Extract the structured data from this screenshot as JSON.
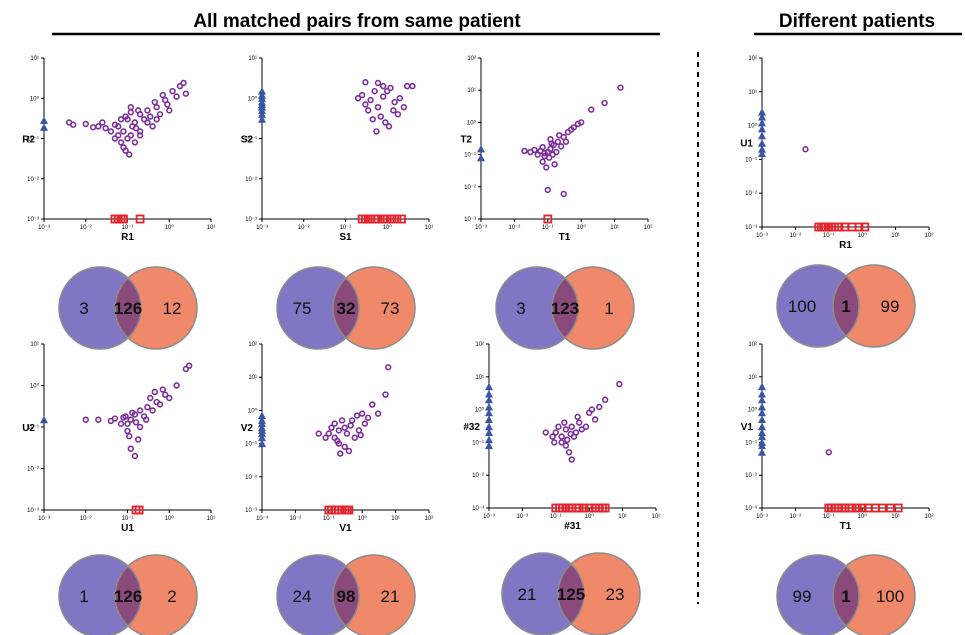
{
  "headers": {
    "left": "All matched pairs from same patient",
    "right": "Different patients"
  },
  "colors": {
    "point": "#7b2d9c",
    "y_only": "#3a55a4",
    "x_only": "#e8222b",
    "venn_left": "#8076c3",
    "venn_right": "#f0896a",
    "venn_overlap": "#8a4a7c",
    "venn_stroke": "#8c8c8c"
  },
  "chart_data": [
    {
      "type": "scatter",
      "x_axis": "log",
      "y_axis": "log",
      "xlabel": "R1",
      "ylabel": "R2",
      "xlim": [
        0.001,
        10
      ],
      "ylim": [
        0.001,
        10
      ],
      "x_ticks": [
        "10⁻³",
        "10⁻²",
        "10⁻¹",
        "10⁰",
        "10¹"
      ],
      "y_ticks": [
        "10⁻³",
        "10⁻²",
        "10⁻¹",
        "10⁰",
        "10¹"
      ],
      "y_only_values": [
        0.19,
        0.28
      ],
      "x_only_values": [
        0.05,
        0.06,
        0.07,
        0.08,
        0.2
      ],
      "points": [
        [
          0.06,
          0.2
        ],
        [
          0.1,
          0.3
        ],
        [
          0.15,
          0.25
        ],
        [
          0.08,
          0.15
        ],
        [
          0.12,
          0.12
        ],
        [
          0.2,
          0.4
        ],
        [
          0.3,
          0.5
        ],
        [
          0.5,
          0.6
        ],
        [
          0.8,
          0.9
        ],
        [
          1.2,
          1.5
        ],
        [
          1.8,
          2.0
        ],
        [
          2.2,
          2.4
        ],
        [
          0.4,
          0.2
        ],
        [
          0.07,
          0.08
        ],
        [
          0.09,
          0.05
        ],
        [
          0.05,
          0.22
        ],
        [
          0.03,
          0.18
        ],
        [
          0.02,
          0.2
        ],
        [
          0.01,
          0.23
        ],
        [
          0.005,
          0.22
        ],
        [
          0.004,
          0.25
        ],
        [
          0.015,
          0.19
        ],
        [
          0.1,
          0.1
        ],
        [
          0.15,
          0.08
        ],
        [
          0.2,
          0.15
        ],
        [
          0.25,
          0.3
        ],
        [
          0.35,
          0.35
        ],
        [
          0.6,
          0.4
        ],
        [
          0.9,
          0.7
        ],
        [
          1.5,
          1.1
        ],
        [
          0.7,
          1.2
        ],
        [
          0.45,
          0.8
        ],
        [
          0.18,
          0.5
        ],
        [
          0.12,
          0.6
        ],
        [
          0.09,
          0.35
        ],
        [
          0.06,
          0.12
        ],
        [
          0.08,
          0.06
        ],
        [
          0.11,
          0.04
        ],
        [
          0.13,
          0.2
        ],
        [
          0.3,
          0.25
        ],
        [
          1.0,
          0.5
        ],
        [
          2.5,
          1.3
        ],
        [
          0.07,
          0.3
        ],
        [
          0.04,
          0.15
        ],
        [
          0.05,
          0.1
        ],
        [
          0.025,
          0.25
        ],
        [
          0.2,
          0.12
        ],
        [
          0.5,
          0.3
        ],
        [
          0.16,
          0.18
        ],
        [
          0.12,
          0.45
        ]
      ],
      "venn": {
        "left": "3",
        "overlap": "126",
        "right": "12"
      }
    },
    {
      "type": "scatter",
      "x_axis": "log",
      "y_axis": "log",
      "xlabel": "S1",
      "ylabel": "S2",
      "xlim": [
        0.001,
        10
      ],
      "ylim": [
        0.001,
        10
      ],
      "x_ticks": [
        "10⁻³",
        "10⁻²",
        "10⁻¹",
        "10⁰",
        "10¹"
      ],
      "y_ticks": [
        "10⁻³",
        "10⁻²",
        "10⁻¹",
        "10⁰",
        "10¹"
      ],
      "y_only_values": [
        0.3,
        0.4,
        0.5,
        0.6,
        0.7,
        0.8,
        1.0,
        1.2,
        1.5
      ],
      "x_only_values": [
        0.25,
        0.3,
        0.35,
        0.4,
        0.5,
        0.6,
        0.8,
        1.0,
        1.3,
        1.7,
        2.2
      ],
      "points": [
        [
          0.3,
          2.5
        ],
        [
          0.5,
          1.5
        ],
        [
          0.8,
          2.0
        ],
        [
          1.2,
          1.8
        ],
        [
          1.5,
          0.8
        ],
        [
          2.0,
          1.0
        ],
        [
          3.0,
          2.0
        ],
        [
          4.0,
          2.0
        ],
        [
          0.25,
          1.2
        ],
        [
          0.4,
          0.9
        ],
        [
          0.6,
          0.6
        ],
        [
          0.7,
          0.35
        ],
        [
          0.9,
          0.25
        ],
        [
          1.1,
          0.2
        ],
        [
          0.35,
          0.5
        ],
        [
          0.45,
          0.3
        ],
        [
          0.55,
          0.15
        ],
        [
          1.8,
          0.4
        ],
        [
          2.5,
          0.6
        ],
        [
          1.4,
          0.5
        ],
        [
          0.3,
          0.7
        ],
        [
          0.2,
          1.0
        ],
        [
          0.8,
          1.1
        ],
        [
          1.0,
          1.5
        ],
        [
          0.6,
          2.4
        ]
      ],
      "venn": {
        "left": "75",
        "overlap": "32",
        "right": "73"
      }
    },
    {
      "type": "scatter",
      "x_axis": "log",
      "y_axis": "log",
      "xlabel": "T1",
      "ylabel": "T2",
      "xlim": [
        0.001,
        100
      ],
      "ylim": [
        0.001,
        100
      ],
      "x_ticks": [
        "10⁻³",
        "10⁻²",
        "10⁻¹",
        "10⁰",
        "10¹",
        "10²"
      ],
      "y_ticks": [
        "10⁻³",
        "10⁻²",
        "10⁻¹",
        "10⁰",
        "10¹",
        "10²"
      ],
      "y_only_values": [
        0.08,
        0.15
      ],
      "x_only_values": [
        0.1
      ],
      "points": [
        [
          0.03,
          0.12
        ],
        [
          0.05,
          0.1
        ],
        [
          0.06,
          0.13
        ],
        [
          0.08,
          0.09
        ],
        [
          0.1,
          0.12
        ],
        [
          0.12,
          0.15
        ],
        [
          0.15,
          0.2
        ],
        [
          0.2,
          0.25
        ],
        [
          0.3,
          0.35
        ],
        [
          0.4,
          0.5
        ],
        [
          0.6,
          0.7
        ],
        [
          1.0,
          1.0
        ],
        [
          2.0,
          2.5
        ],
        [
          5.0,
          4.0
        ],
        [
          15.0,
          12.0
        ],
        [
          0.07,
          0.06
        ],
        [
          0.09,
          0.04
        ],
        [
          0.1,
          0.008
        ],
        [
          0.3,
          0.006
        ],
        [
          0.12,
          0.3
        ],
        [
          0.18,
          0.12
        ],
        [
          0.25,
          0.18
        ],
        [
          0.04,
          0.14
        ],
        [
          0.02,
          0.13
        ],
        [
          0.11,
          0.08
        ],
        [
          0.14,
          0.1
        ],
        [
          0.5,
          0.6
        ],
        [
          0.8,
          0.9
        ],
        [
          0.35,
          0.25
        ],
        [
          0.13,
          0.22
        ],
        [
          0.16,
          0.05
        ],
        [
          0.22,
          0.4
        ],
        [
          0.07,
          0.17
        ],
        [
          0.08,
          0.11
        ]
      ],
      "venn": {
        "left": "3",
        "overlap": "123",
        "right": "1"
      }
    },
    {
      "type": "scatter",
      "x_axis": "log",
      "y_axis": "log",
      "xlabel": "R1",
      "ylabel": "U1",
      "xlim": [
        0.001,
        100
      ],
      "ylim": [
        0.001,
        100
      ],
      "x_ticks": [
        "10⁻³",
        "10⁻²",
        "10⁻¹",
        "10⁰",
        "10¹",
        "10²"
      ],
      "y_ticks": [
        "10⁻³",
        "10⁻²",
        "10⁻¹",
        "10⁰",
        "10¹",
        "10²"
      ],
      "y_only_values": [
        0.15,
        0.2,
        0.3,
        0.5,
        0.8,
        1.2,
        1.8,
        2.5
      ],
      "x_only_values": [
        0.05,
        0.06,
        0.07,
        0.08,
        0.1,
        0.12,
        0.15,
        0.2,
        0.3,
        0.5,
        0.8,
        1.2
      ],
      "points": [
        [
          0.02,
          0.2
        ]
      ],
      "venn": {
        "left": "100",
        "overlap": "1",
        "right": "99"
      }
    },
    {
      "type": "scatter",
      "x_axis": "log",
      "y_axis": "log",
      "xlabel": "U1",
      "ylabel": "U2",
      "xlim": [
        0.001,
        10
      ],
      "ylim": [
        0.001,
        10
      ],
      "x_ticks": [
        "10⁻³",
        "10⁻²",
        "10⁻¹",
        "10⁰",
        "10¹"
      ],
      "y_ticks": [
        "10⁻³",
        "10⁻²",
        "10⁻¹",
        "10⁰",
        "10¹"
      ],
      "y_only_values": [
        0.15
      ],
      "x_only_values": [
        0.16,
        0.19
      ],
      "points": [
        [
          0.01,
          0.15
        ],
        [
          0.02,
          0.15
        ],
        [
          0.05,
          0.16
        ],
        [
          0.08,
          0.17
        ],
        [
          0.1,
          0.12
        ],
        [
          0.12,
          0.15
        ],
        [
          0.15,
          0.2
        ],
        [
          0.2,
          0.25
        ],
        [
          0.3,
          0.3
        ],
        [
          0.5,
          0.4
        ],
        [
          0.8,
          0.6
        ],
        [
          1.5,
          1.0
        ],
        [
          2.5,
          2.5
        ],
        [
          3.0,
          3.0
        ],
        [
          0.12,
          0.03
        ],
        [
          0.15,
          0.02
        ],
        [
          0.18,
          0.05
        ],
        [
          0.1,
          0.08
        ],
        [
          0.07,
          0.12
        ],
        [
          0.25,
          0.18
        ],
        [
          0.4,
          0.25
        ],
        [
          0.6,
          0.35
        ],
        [
          1.0,
          0.5
        ],
        [
          0.2,
          0.1
        ],
        [
          0.13,
          0.22
        ],
        [
          0.35,
          0.5
        ],
        [
          0.04,
          0.14
        ],
        [
          0.09,
          0.18
        ],
        [
          0.16,
          0.13
        ],
        [
          0.45,
          0.7
        ],
        [
          0.7,
          0.8
        ],
        [
          0.28,
          0.15
        ],
        [
          0.11,
          0.06
        ]
      ],
      "venn": {
        "left": "1",
        "overlap": "126",
        "right": "2"
      }
    },
    {
      "type": "scatter",
      "x_axis": "log",
      "y_axis": "log",
      "xlabel": "V1",
      "ylabel": "V2",
      "xlim": [
        0.001,
        100
      ],
      "ylim": [
        0.001,
        100
      ],
      "x_ticks": [
        "10⁻³",
        "10⁻²",
        "10⁻¹",
        "10⁰",
        "10¹",
        "10²"
      ],
      "y_ticks": [
        "10⁻³",
        "10⁻²",
        "10⁻¹",
        "10⁰",
        "10¹",
        "10²"
      ],
      "y_only_values": [
        0.1,
        0.15,
        0.2,
        0.25,
        0.3,
        0.4,
        0.5,
        0.7
      ],
      "x_only_values": [
        0.1,
        0.12,
        0.15,
        0.2,
        0.25,
        0.3,
        0.35,
        0.4
      ],
      "points": [
        [
          0.05,
          0.2
        ],
        [
          0.08,
          0.15
        ],
        [
          0.1,
          0.2
        ],
        [
          0.15,
          0.15
        ],
        [
          0.2,
          0.25
        ],
        [
          0.3,
          0.3
        ],
        [
          0.5,
          0.5
        ],
        [
          1.0,
          0.8
        ],
        [
          2.0,
          1.5
        ],
        [
          5.0,
          3.0
        ],
        [
          6.0,
          20.0
        ],
        [
          0.3,
          0.08
        ],
        [
          0.4,
          0.06
        ],
        [
          0.2,
          0.1
        ],
        [
          0.12,
          0.3
        ],
        [
          0.6,
          0.15
        ],
        [
          0.8,
          0.25
        ],
        [
          1.2,
          0.4
        ],
        [
          0.25,
          0.5
        ],
        [
          0.18,
          0.12
        ],
        [
          0.35,
          0.2
        ],
        [
          1.5,
          0.6
        ],
        [
          3.0,
          0.8
        ],
        [
          0.45,
          0.35
        ],
        [
          0.7,
          0.7
        ],
        [
          0.15,
          0.4
        ],
        [
          0.9,
          0.18
        ],
        [
          0.22,
          0.05
        ]
      ],
      "venn": {
        "left": "24",
        "overlap": "98",
        "right": "21"
      }
    },
    {
      "type": "scatter",
      "x_axis": "log",
      "y_axis": "log",
      "xlabel": "#31",
      "ylabel": "#32",
      "xlim": [
        0.001,
        100
      ],
      "ylim": [
        0.001,
        100
      ],
      "x_ticks": [
        "10⁻³",
        "10⁻²",
        "10⁻¹",
        "10⁰",
        "10¹",
        "10²"
      ],
      "y_ticks": [
        "10⁻³",
        "10⁻²",
        "10⁻¹",
        "10⁰",
        "10¹",
        "10²"
      ],
      "y_only_values": [
        0.08,
        0.12,
        0.2,
        0.3,
        0.5,
        0.8,
        1.2,
        2.0,
        3.0,
        5.0
      ],
      "x_only_values": [
        0.1,
        0.13,
        0.16,
        0.2,
        0.25,
        0.3,
        0.4,
        0.5,
        0.7,
        1.0,
        1.5,
        2.0,
        2.5,
        3.0
      ],
      "points": [
        [
          0.05,
          0.2
        ],
        [
          0.08,
          0.15
        ],
        [
          0.1,
          0.2
        ],
        [
          0.15,
          0.15
        ],
        [
          0.2,
          0.25
        ],
        [
          0.3,
          0.3
        ],
        [
          0.5,
          0.4
        ],
        [
          1.0,
          0.8
        ],
        [
          2.0,
          1.2
        ],
        [
          3.0,
          2.0
        ],
        [
          8.0,
          6.0
        ],
        [
          0.2,
          0.08
        ],
        [
          0.25,
          0.05
        ],
        [
          0.3,
          0.03
        ],
        [
          0.15,
          0.1
        ],
        [
          0.12,
          0.3
        ],
        [
          0.4,
          0.2
        ],
        [
          0.6,
          0.25
        ],
        [
          1.5,
          0.5
        ],
        [
          0.35,
          0.15
        ],
        [
          0.18,
          0.4
        ],
        [
          0.8,
          0.3
        ],
        [
          0.22,
          0.12
        ],
        [
          1.2,
          1.0
        ],
        [
          0.45,
          0.6
        ],
        [
          0.09,
          0.1
        ],
        [
          0.28,
          0.18
        ]
      ],
      "venn": {
        "left": "21",
        "overlap": "125",
        "right": "23"
      }
    },
    {
      "type": "scatter",
      "x_axis": "log",
      "y_axis": "log",
      "xlabel": "T1",
      "ylabel": "V1",
      "xlim": [
        0.001,
        100
      ],
      "ylim": [
        0.001,
        100
      ],
      "x_ticks": [
        "10⁻³",
        "10⁻²",
        "10⁻¹",
        "10⁰",
        "10¹",
        "10²"
      ],
      "y_ticks": [
        "10⁻³",
        "10⁻²",
        "10⁻¹",
        "10⁰",
        "10¹",
        "10²"
      ],
      "y_only_values": [
        0.05,
        0.08,
        0.1,
        0.15,
        0.2,
        0.3,
        0.5,
        0.8,
        1.2,
        2.0,
        3.0,
        5.0
      ],
      "x_only_values": [
        0.1,
        0.12,
        0.15,
        0.2,
        0.25,
        0.3,
        0.4,
        0.5,
        0.7,
        1.0,
        1.5,
        2.5,
        4.0,
        7.0,
        12.0
      ],
      "points": [
        [
          0.1,
          0.05
        ]
      ],
      "venn": {
        "left": "99",
        "overlap": "1",
        "right": "100"
      }
    }
  ]
}
